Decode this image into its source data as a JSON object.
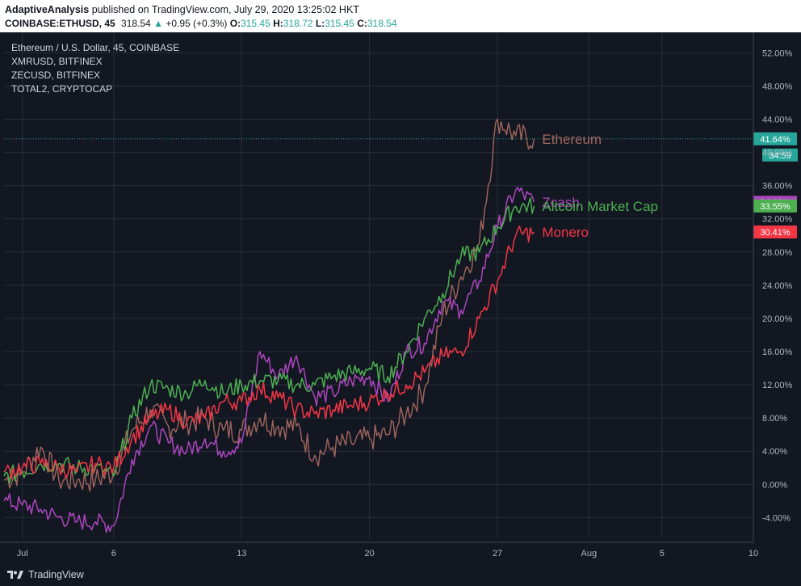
{
  "header": {
    "author": "AdaptiveAnalysis",
    "published_text": "published on TradingView.com, July 29, 2020 13:25:02 HKT",
    "symbol": "COINBASE:ETHUSD, 45",
    "last": "318.54",
    "change_arrow": "▲",
    "change": "+0.95 (+0.3%)",
    "o_label": "O:",
    "o_value": "315.45",
    "h_label": "H:",
    "h_value": "318.72",
    "l_label": "L:",
    "l_value": "315.45",
    "c_label": "C:",
    "c_value": "318.54"
  },
  "footer": {
    "brand": "TradingView",
    "logo_icon": "tradingview-logo-icon"
  },
  "colors": {
    "background": "#131722",
    "grid": "#2a2e39",
    "ethereum": "#a1665e",
    "ethereum_up": "#26a69a",
    "zcash": "#ab47bc",
    "altcoin": "#4caf50",
    "monero": "#f23645",
    "axis_text": "#b2b5be"
  },
  "chart_data": {
    "type": "line",
    "title": "Ethereum / U.S. Dollar, 45, COINBASE",
    "legend": [
      "XMRUSD, BITFINEX",
      "ZECUSD, BITFINEX",
      "TOTAL2, CRYPTOCAP"
    ],
    "xlabel": "",
    "ylabel": "",
    "x_ticks": [
      "Jul",
      "6",
      "13",
      "20",
      "27",
      "Aug",
      "5",
      "10"
    ],
    "x_tick_dates": [
      "2020-07-01",
      "2020-07-06",
      "2020-07-13",
      "2020-07-20",
      "2020-07-27",
      "2020-08-01",
      "2020-08-05",
      "2020-08-10"
    ],
    "xlim": [
      "2020-06-30",
      "2020-08-10"
    ],
    "y_ticks": [
      "52.00%",
      "48.00%",
      "44.00%",
      "40.00%",
      "36.00%",
      "32.00%",
      "28.00%",
      "24.00%",
      "20.00%",
      "16.00%",
      "12.00%",
      "8.00%",
      "4.00%",
      "0.00%",
      "-4.00%"
    ],
    "ylim": [
      -6.5,
      53.5
    ],
    "y_unit": "%",
    "grid": true,
    "crosshair_value": 41.64,
    "last_price_tag": "41.64%",
    "countdown_tag": "34:59",
    "series": [
      {
        "name": "Ethereum",
        "label": "Ethereum",
        "last_tag": "41.64%",
        "x": [
          "2020-06-30",
          "2020-07-01",
          "2020-07-02",
          "2020-07-03",
          "2020-07-04",
          "2020-07-05",
          "2020-07-06",
          "2020-07-07",
          "2020-07-08",
          "2020-07-09",
          "2020-07-10",
          "2020-07-11",
          "2020-07-12",
          "2020-07-13",
          "2020-07-14",
          "2020-07-15",
          "2020-07-16",
          "2020-07-17",
          "2020-07-18",
          "2020-07-19",
          "2020-07-20",
          "2020-07-21",
          "2020-07-22",
          "2020-07-23",
          "2020-07-24",
          "2020-07-25",
          "2020-07-26",
          "2020-07-27",
          "2020-07-28",
          "2020-07-29"
        ],
        "values": [
          0.5,
          1.5,
          4.5,
          0.5,
          0.5,
          0.5,
          1.5,
          6.5,
          9.0,
          7.0,
          7.5,
          8.0,
          6.5,
          6.5,
          8.0,
          7.0,
          7.0,
          3.5,
          4.5,
          5.0,
          5.5,
          6.0,
          8.5,
          11.5,
          20.5,
          25.0,
          29.0,
          44.0,
          42.0,
          41.64
        ]
      },
      {
        "name": "Zcash",
        "label": "Zcash",
        "last_tag": "34.00%",
        "x": [
          "2020-06-30",
          "2020-07-01",
          "2020-07-02",
          "2020-07-03",
          "2020-07-04",
          "2020-07-05",
          "2020-07-06",
          "2020-07-07",
          "2020-07-08",
          "2020-07-09",
          "2020-07-10",
          "2020-07-11",
          "2020-07-12",
          "2020-07-13",
          "2020-07-14",
          "2020-07-15",
          "2020-07-16",
          "2020-07-17",
          "2020-07-18",
          "2020-07-19",
          "2020-07-20",
          "2020-07-21",
          "2020-07-22",
          "2020-07-23",
          "2020-07-24",
          "2020-07-25",
          "2020-07-26",
          "2020-07-27",
          "2020-07-28",
          "2020-07-29"
        ],
        "values": [
          -2.0,
          -2.5,
          -3.0,
          -4.0,
          -4.5,
          -4.5,
          -5.0,
          3.0,
          7.0,
          5.0,
          4.0,
          5.5,
          4.0,
          5.0,
          16.0,
          13.0,
          15.5,
          10.5,
          11.0,
          12.5,
          13.0,
          10.0,
          16.0,
          17.0,
          22.0,
          21.0,
          24.5,
          31.0,
          35.5,
          34.0
        ]
      },
      {
        "name": "Altcoin Market Cap",
        "label": "Altcoin Market Cap",
        "last_tag": "33.55%",
        "x": [
          "2020-06-30",
          "2020-07-01",
          "2020-07-02",
          "2020-07-03",
          "2020-07-04",
          "2020-07-05",
          "2020-07-06",
          "2020-07-07",
          "2020-07-08",
          "2020-07-09",
          "2020-07-10",
          "2020-07-11",
          "2020-07-12",
          "2020-07-13",
          "2020-07-14",
          "2020-07-15",
          "2020-07-16",
          "2020-07-17",
          "2020-07-18",
          "2020-07-19",
          "2020-07-20",
          "2020-07-21",
          "2020-07-22",
          "2020-07-23",
          "2020-07-24",
          "2020-07-25",
          "2020-07-26",
          "2020-07-27",
          "2020-07-28",
          "2020-07-29"
        ],
        "values": [
          1.0,
          1.5,
          2.5,
          2.5,
          2.0,
          2.0,
          1.0,
          8.0,
          12.0,
          11.5,
          11.0,
          12.5,
          11.0,
          12.0,
          12.5,
          12.5,
          12.0,
          12.0,
          13.0,
          13.5,
          14.0,
          13.0,
          16.0,
          20.0,
          23.0,
          27.5,
          28.0,
          31.0,
          33.5,
          33.55
        ]
      },
      {
        "name": "Monero",
        "label": "Monero",
        "last_tag": "30.41%",
        "x": [
          "2020-06-30",
          "2020-07-01",
          "2020-07-02",
          "2020-07-03",
          "2020-07-04",
          "2020-07-05",
          "2020-07-06",
          "2020-07-07",
          "2020-07-08",
          "2020-07-09",
          "2020-07-10",
          "2020-07-11",
          "2020-07-12",
          "2020-07-13",
          "2020-07-14",
          "2020-07-15",
          "2020-07-16",
          "2020-07-17",
          "2020-07-18",
          "2020-07-19",
          "2020-07-20",
          "2020-07-21",
          "2020-07-22",
          "2020-07-23",
          "2020-07-24",
          "2020-07-25",
          "2020-07-26",
          "2020-07-27",
          "2020-07-28",
          "2020-07-29"
        ],
        "values": [
          1.5,
          2.0,
          2.5,
          2.0,
          1.5,
          2.5,
          2.0,
          5.5,
          8.0,
          9.0,
          7.5,
          8.0,
          10.0,
          10.0,
          11.5,
          10.5,
          9.0,
          8.5,
          9.0,
          9.5,
          10.0,
          11.0,
          12.0,
          13.5,
          15.5,
          16.0,
          20.0,
          24.5,
          30.0,
          30.41
        ]
      }
    ]
  }
}
